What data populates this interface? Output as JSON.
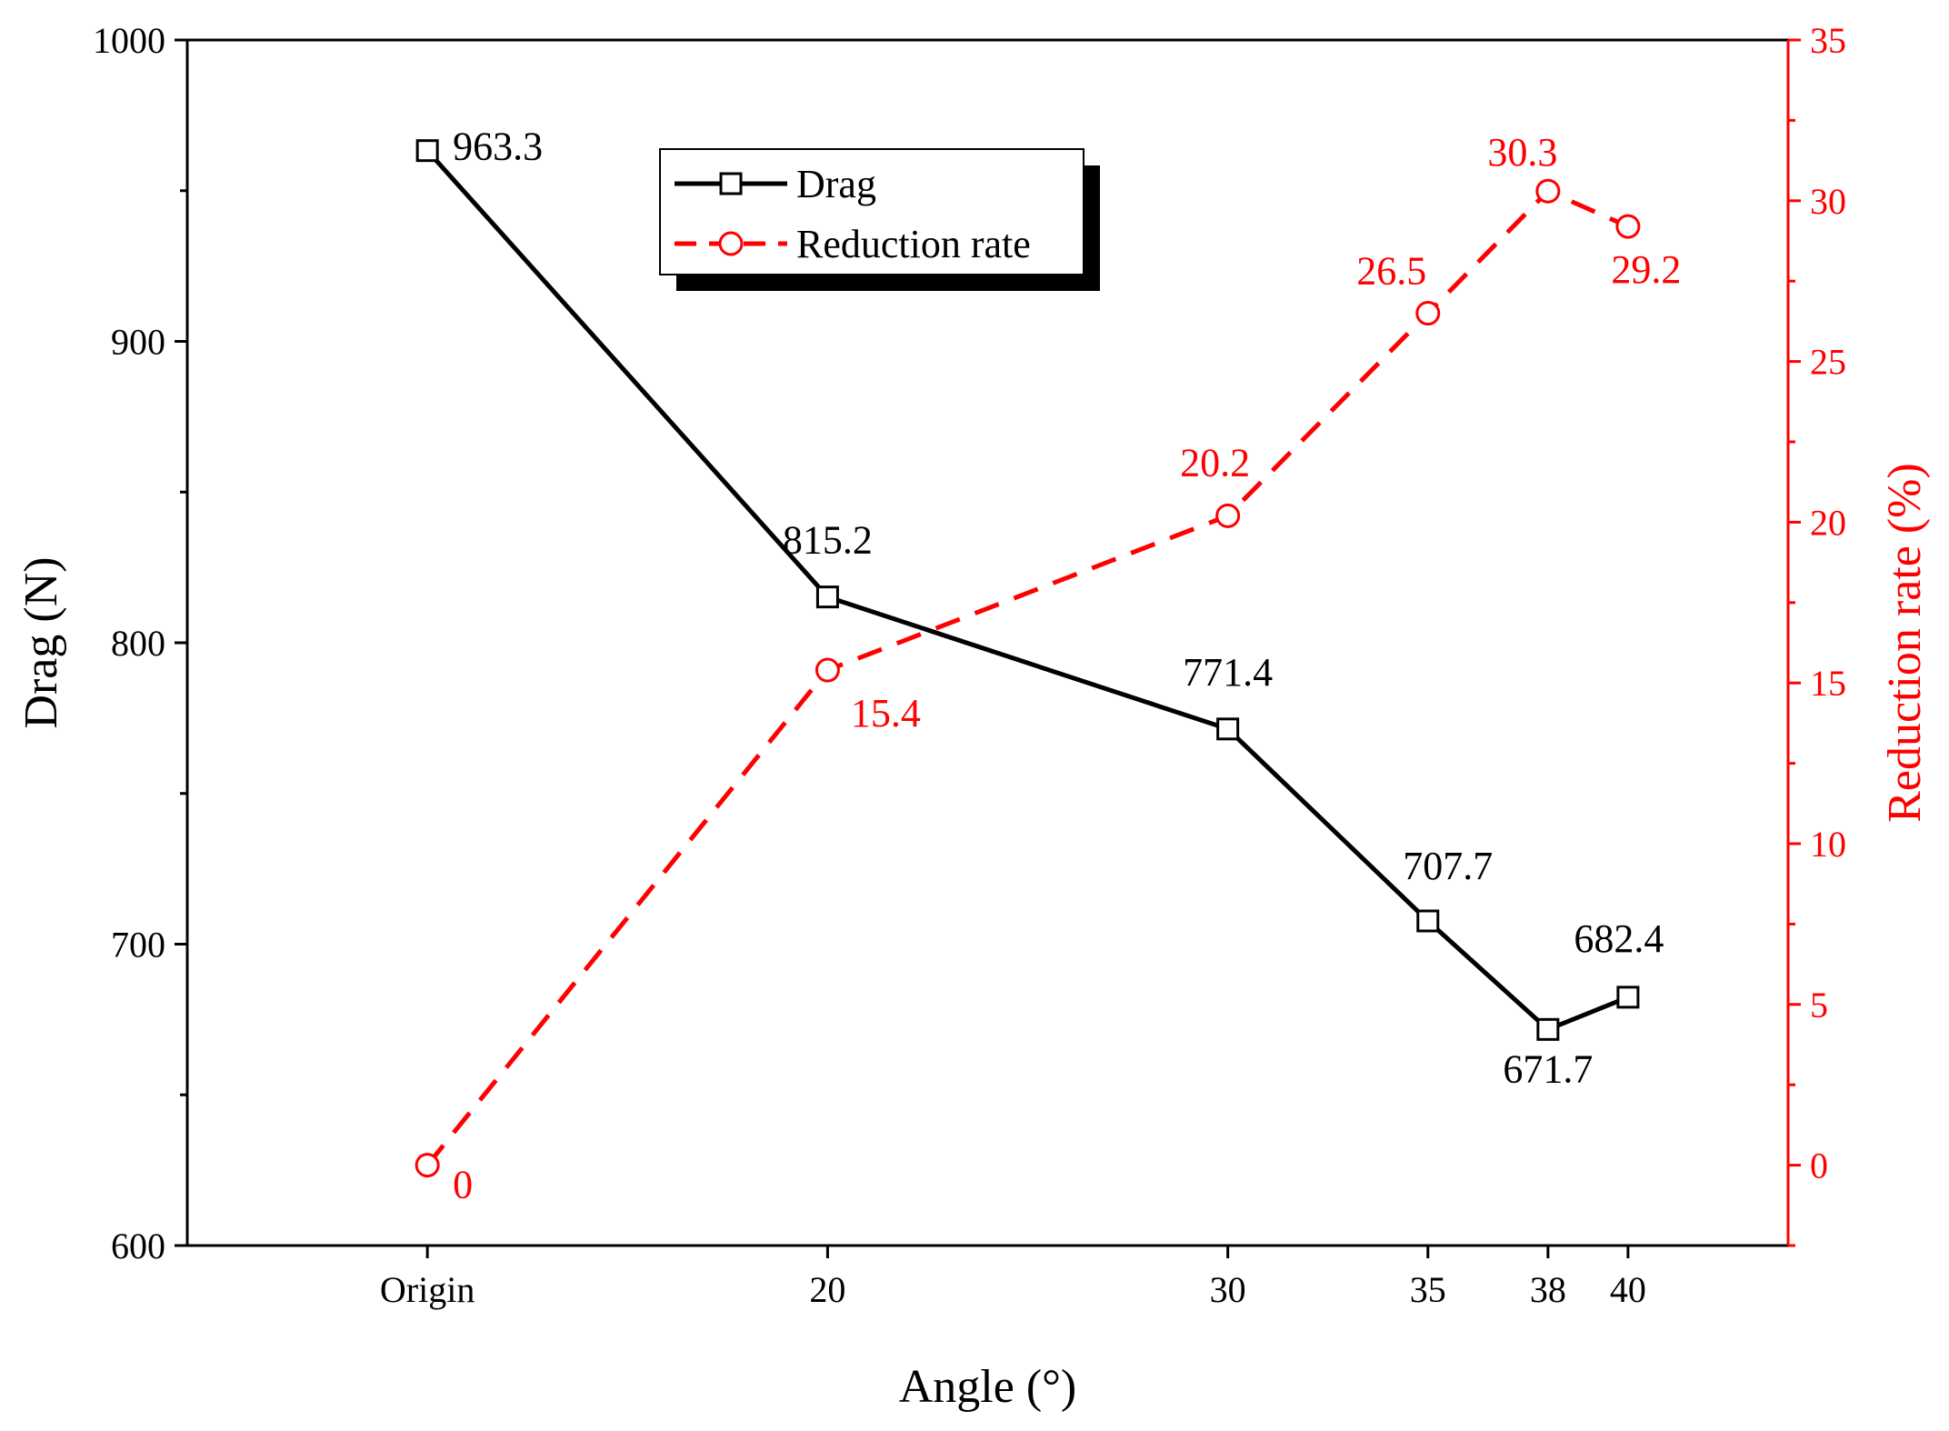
{
  "chart_data": {
    "type": "line",
    "x_labels": [
      "Origin",
      "20",
      "30",
      "35",
      "38",
      "40"
    ],
    "x": [
      10,
      20,
      30,
      35,
      38,
      40
    ],
    "xlim": [
      4,
      44
    ],
    "xlabel": "Angle (°)",
    "left_axis": {
      "label": "Drag (N)",
      "ylim": [
        600,
        1000
      ],
      "ticks": [
        600,
        700,
        800,
        900,
        1000
      ],
      "color": "#000000"
    },
    "right_axis": {
      "label": "Reduction rate (%)",
      "ylim": [
        -2.5,
        35
      ],
      "ticks": [
        0,
        5,
        10,
        15,
        20,
        25,
        30,
        35
      ],
      "color": "#ff0000"
    },
    "series": [
      {
        "name": "Drag",
        "axis": "left",
        "color": "#000000",
        "marker": "square",
        "dash": "solid",
        "values": [
          963.3,
          815.2,
          771.4,
          707.7,
          671.7,
          682.4
        ],
        "labels": [
          "963.3",
          "815.2",
          "771.4",
          "707.7",
          "671.7",
          "682.4"
        ]
      },
      {
        "name": "Reduction rate",
        "axis": "right",
        "color": "#ff0000",
        "marker": "circle",
        "dash": "dashed",
        "values": [
          0,
          15.4,
          20.2,
          26.5,
          30.3,
          29.2
        ],
        "labels": [
          "0",
          "15.4",
          "20.2",
          "26.5",
          "30.3",
          "29.2"
        ]
      }
    ],
    "legend": {
      "position": "top-center",
      "entries": [
        "Drag",
        "Reduction rate"
      ]
    }
  }
}
